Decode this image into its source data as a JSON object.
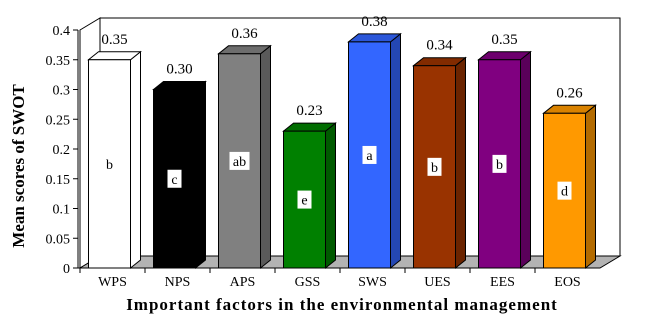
{
  "chart_data": {
    "type": "bar",
    "categories": [
      "WPS",
      "NPS",
      "APS",
      "GSS",
      "SWS",
      "UES",
      "EES",
      "EOS"
    ],
    "values": [
      0.35,
      0.3,
      0.36,
      0.23,
      0.38,
      0.34,
      0.35,
      0.26
    ],
    "value_labels": [
      "0.35",
      "0.30",
      "0.36",
      "0.23",
      "0.38",
      "0.34",
      "0.35",
      "0.26"
    ],
    "group_letters": [
      "b",
      "c",
      "ab",
      "e",
      "a",
      "b",
      "b",
      "d"
    ],
    "bar_colors": [
      "#ffffff",
      "#000000",
      "#808080",
      "#008000",
      "#3366ff",
      "#993300",
      "#800080",
      "#ff9900"
    ],
    "xlabel": "Important factors in the environmental management",
    "ylabel": "Mean scores of SWOT",
    "ylim": [
      0,
      0.4
    ],
    "yticks": [
      "0",
      "0.05",
      "0.1",
      "0.15",
      "0.2",
      "0.25",
      "0.3",
      "0.35",
      "0.4"
    ],
    "style": "3d-bar",
    "grid": false,
    "legend": "none"
  }
}
